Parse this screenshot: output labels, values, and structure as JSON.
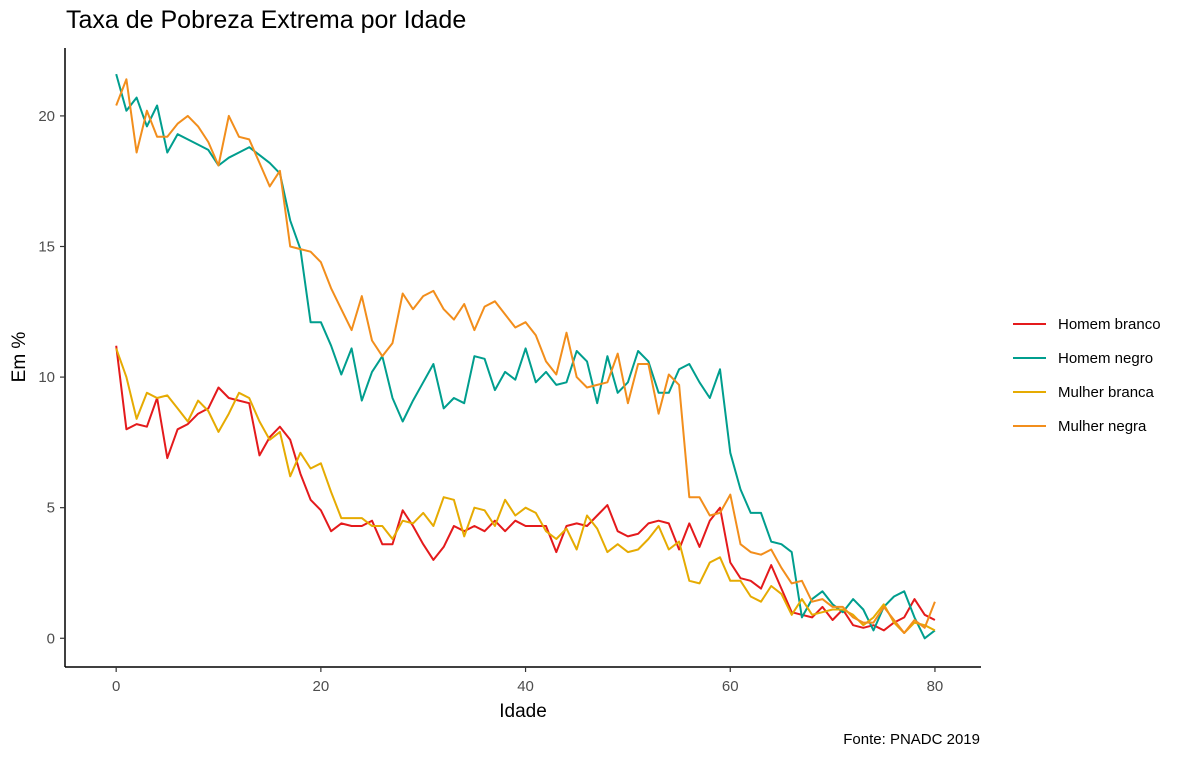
{
  "chart_data": {
    "type": "line",
    "title": "Taxa de Pobreza Extrema por Idade",
    "xlabel": "Idade",
    "ylabel": "Em %",
    "caption": "Fonte: PNADC 2019",
    "xlim": [
      -5,
      84.5
    ],
    "ylim": [
      -1.1,
      22.6
    ],
    "xticks": [
      0,
      20,
      40,
      60,
      80
    ],
    "yticks": [
      0,
      5,
      10,
      15,
      20
    ],
    "grid": false,
    "legend_position": "right",
    "x": [
      0,
      1,
      2,
      3,
      4,
      5,
      6,
      7,
      8,
      9,
      10,
      11,
      12,
      13,
      14,
      15,
      16,
      17,
      18,
      19,
      20,
      21,
      22,
      23,
      24,
      25,
      26,
      27,
      28,
      29,
      30,
      31,
      32,
      33,
      34,
      35,
      36,
      37,
      38,
      39,
      40,
      41,
      42,
      43,
      44,
      45,
      46,
      47,
      48,
      49,
      50,
      51,
      52,
      53,
      54,
      55,
      56,
      57,
      58,
      59,
      60,
      61,
      62,
      63,
      64,
      65,
      66,
      67,
      68,
      69,
      70,
      71,
      72,
      73,
      74,
      75,
      76,
      77,
      78,
      79,
      80
    ],
    "series": [
      {
        "name": "Homem branco",
        "color": "#E41A1C",
        "values": [
          11.2,
          8.0,
          8.2,
          8.1,
          9.2,
          6.9,
          8.0,
          8.2,
          8.6,
          8.8,
          9.6,
          9.2,
          9.1,
          9.0,
          7.0,
          7.7,
          8.1,
          7.6,
          6.3,
          5.3,
          4.9,
          4.1,
          4.4,
          4.3,
          4.3,
          4.5,
          3.6,
          3.6,
          4.9,
          4.3,
          3.6,
          3.0,
          3.5,
          4.3,
          4.1,
          4.3,
          4.1,
          4.5,
          4.1,
          4.5,
          4.3,
          4.3,
          4.3,
          3.3,
          4.3,
          4.4,
          4.3,
          4.7,
          5.1,
          4.1,
          3.9,
          4.0,
          4.4,
          4.5,
          4.4,
          3.4,
          4.4,
          3.5,
          4.5,
          5.0,
          2.9,
          2.3,
          2.2,
          1.9,
          2.8,
          1.9,
          1.0,
          0.9,
          0.8,
          1.2,
          0.7,
          1.1,
          0.5,
          0.4,
          0.5,
          0.3,
          0.6,
          0.8,
          1.5,
          0.9,
          0.7
        ]
      },
      {
        "name": "Homem negro",
        "color": "#009E8E",
        "values": [
          21.6,
          20.2,
          20.7,
          19.6,
          20.4,
          18.6,
          19.3,
          19.1,
          18.9,
          18.7,
          18.1,
          18.4,
          18.6,
          18.8,
          18.5,
          18.2,
          17.8,
          16.0,
          14.9,
          12.1,
          12.1,
          11.2,
          10.1,
          11.1,
          9.1,
          10.2,
          10.8,
          9.2,
          8.3,
          9.1,
          9.8,
          10.5,
          8.8,
          9.2,
          9.0,
          10.8,
          10.7,
          9.5,
          10.2,
          9.9,
          11.1,
          9.8,
          10.2,
          9.7,
          9.8,
          11.0,
          10.6,
          9.0,
          10.8,
          9.4,
          9.8,
          11.0,
          10.6,
          9.4,
          9.4,
          10.3,
          10.5,
          9.8,
          9.2,
          10.3,
          7.1,
          5.7,
          4.8,
          4.8,
          3.7,
          3.6,
          3.3,
          0.8,
          1.5,
          1.8,
          1.3,
          1.0,
          1.5,
          1.1,
          0.3,
          1.2,
          1.6,
          1.8,
          0.8,
          0.0,
          0.3
        ]
      },
      {
        "name": "Mulher branca",
        "color": "#E6AB02",
        "values": [
          11.1,
          10.0,
          8.4,
          9.4,
          9.2,
          9.3,
          8.8,
          8.3,
          9.1,
          8.7,
          7.9,
          8.6,
          9.4,
          9.2,
          8.3,
          7.6,
          7.9,
          6.2,
          7.1,
          6.5,
          6.7,
          5.6,
          4.6,
          4.6,
          4.6,
          4.3,
          4.3,
          3.8,
          4.5,
          4.4,
          4.8,
          4.3,
          5.4,
          5.3,
          3.9,
          5.0,
          4.9,
          4.3,
          5.3,
          4.7,
          5.0,
          4.8,
          4.1,
          3.8,
          4.2,
          3.4,
          4.7,
          4.2,
          3.3,
          3.6,
          3.3,
          3.4,
          3.8,
          4.3,
          3.4,
          3.7,
          2.2,
          2.1,
          2.9,
          3.1,
          2.2,
          2.2,
          1.6,
          1.4,
          2.0,
          1.7,
          0.9,
          1.5,
          0.9,
          1.0,
          1.1,
          1.1,
          0.9,
          0.5,
          0.8,
          1.3,
          0.6,
          0.2,
          0.6,
          0.5,
          0.3
        ]
      },
      {
        "name": "Mulher negra",
        "color": "#F28E1C",
        "values": [
          20.4,
          21.4,
          18.6,
          20.2,
          19.2,
          19.2,
          19.7,
          20.0,
          19.6,
          19.0,
          18.1,
          20.0,
          19.2,
          19.1,
          18.2,
          17.3,
          17.9,
          15.0,
          14.9,
          14.8,
          14.4,
          13.4,
          12.6,
          11.8,
          13.1,
          11.4,
          10.8,
          11.3,
          13.2,
          12.6,
          13.1,
          13.3,
          12.6,
          12.2,
          12.8,
          11.8,
          12.7,
          12.9,
          12.4,
          11.9,
          12.1,
          11.6,
          10.6,
          10.1,
          11.7,
          10.0,
          9.6,
          9.7,
          9.8,
          10.9,
          9.0,
          10.5,
          10.5,
          8.6,
          10.1,
          9.7,
          5.4,
          5.4,
          4.7,
          4.8,
          5.5,
          3.6,
          3.3,
          3.2,
          3.4,
          2.7,
          2.1,
          2.2,
          1.4,
          1.5,
          1.2,
          1.2,
          0.8,
          0.6,
          0.6,
          1.2,
          0.7,
          0.2,
          0.7,
          0.4,
          1.4
        ]
      }
    ]
  }
}
